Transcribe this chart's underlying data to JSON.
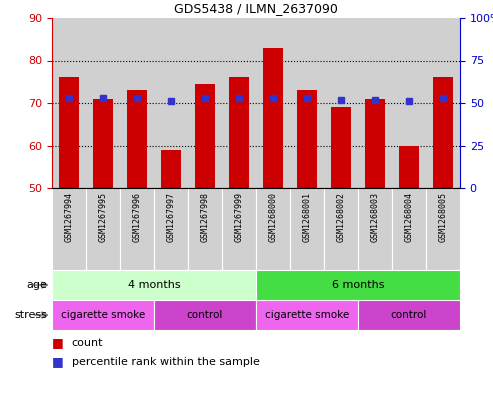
{
  "title": "GDS5438 / ILMN_2637090",
  "samples": [
    "GSM1267994",
    "GSM1267995",
    "GSM1267996",
    "GSM1267997",
    "GSM1267998",
    "GSM1267999",
    "GSM1268000",
    "GSM1268001",
    "GSM1268002",
    "GSM1268003",
    "GSM1268004",
    "GSM1268005"
  ],
  "counts": [
    76,
    71,
    73,
    59,
    74.5,
    76,
    83,
    73,
    69,
    71,
    60,
    76
  ],
  "percentiles": [
    53,
    53,
    53,
    51,
    53,
    53,
    53,
    53,
    52,
    52,
    51,
    53
  ],
  "ylim_left": [
    50,
    90
  ],
  "ylim_right": [
    0,
    100
  ],
  "yticks_left": [
    50,
    60,
    70,
    80,
    90
  ],
  "yticks_right": [
    0,
    25,
    50,
    75,
    100
  ],
  "bar_color": "#cc0000",
  "dot_color": "#3333cc",
  "bar_bottom": 50,
  "age_groups": [
    {
      "label": "4 months",
      "start": 0,
      "end": 6,
      "color": "#ccffcc"
    },
    {
      "label": "6 months",
      "start": 6,
      "end": 12,
      "color": "#44dd44"
    }
  ],
  "stress_groups": [
    {
      "label": "cigarette smoke",
      "start": 0,
      "end": 3,
      "color": "#ee66ee"
    },
    {
      "label": "control",
      "start": 3,
      "end": 6,
      "color": "#cc44cc"
    },
    {
      "label": "cigarette smoke",
      "start": 6,
      "end": 9,
      "color": "#ee66ee"
    },
    {
      "label": "control",
      "start": 9,
      "end": 12,
      "color": "#cc44cc"
    }
  ],
  "sample_bg": "#d0d0d0",
  "left_tick_color": "#cc0000",
  "right_tick_color": "#0000cc",
  "grid_dotted_at": [
    60,
    70,
    80
  ]
}
